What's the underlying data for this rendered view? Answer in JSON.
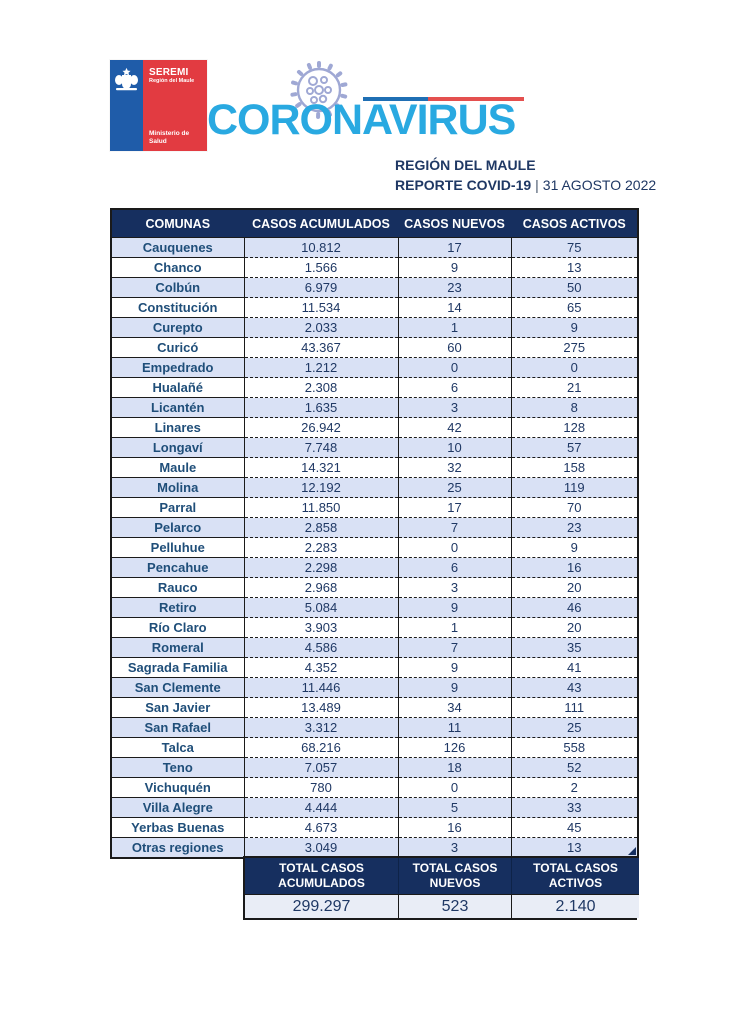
{
  "logo": {
    "agency": "SEREMI",
    "region": "Región del Maule",
    "ministry": "Ministerio de\nSalud"
  },
  "header": {
    "title": "CORONAVIRUS",
    "region": "REGIÓN DEL MAULE",
    "report_label": "REPORTE COVID-19",
    "separator": "|",
    "report_date": "31 AGOSTO 2022"
  },
  "colors": {
    "title_blue": "#29A9E1",
    "navy_text": "#1F3864",
    "comuna_text": "#1F4E79",
    "header_bg": "#162F5F",
    "row_alt": "#D9E1F5",
    "totals_value_bg": "#E9EDF6",
    "logo_blue": "#1F5CA9",
    "logo_red": "#E23B41",
    "accent_line_blue": "#1F6FB4",
    "accent_line_red": "#E4504F",
    "virus_icon": "#9FA8D4"
  },
  "table": {
    "columns": [
      "COMUNAS",
      "CASOS ACUMULADOS",
      "CASOS NUEVOS",
      "CASOS ACTIVOS"
    ],
    "rows": [
      {
        "comuna": "Cauquenes",
        "acumulados": "10.812",
        "nuevos": "17",
        "activos": "75"
      },
      {
        "comuna": "Chanco",
        "acumulados": "1.566",
        "nuevos": "9",
        "activos": "13"
      },
      {
        "comuna": "Colbún",
        "acumulados": "6.979",
        "nuevos": "23",
        "activos": "50"
      },
      {
        "comuna": "Constitución",
        "acumulados": "11.534",
        "nuevos": "14",
        "activos": "65"
      },
      {
        "comuna": "Curepto",
        "acumulados": "2.033",
        "nuevos": "1",
        "activos": "9"
      },
      {
        "comuna": "Curicó",
        "acumulados": "43.367",
        "nuevos": "60",
        "activos": "275"
      },
      {
        "comuna": "Empedrado",
        "acumulados": "1.212",
        "nuevos": "0",
        "activos": "0"
      },
      {
        "comuna": "Hualañé",
        "acumulados": "2.308",
        "nuevos": "6",
        "activos": "21"
      },
      {
        "comuna": "Licantén",
        "acumulados": "1.635",
        "nuevos": "3",
        "activos": "8"
      },
      {
        "comuna": "Linares",
        "acumulados": "26.942",
        "nuevos": "42",
        "activos": "128"
      },
      {
        "comuna": "Longaví",
        "acumulados": "7.748",
        "nuevos": "10",
        "activos": "57"
      },
      {
        "comuna": "Maule",
        "acumulados": "14.321",
        "nuevos": "32",
        "activos": "158"
      },
      {
        "comuna": "Molina",
        "acumulados": "12.192",
        "nuevos": "25",
        "activos": "119"
      },
      {
        "comuna": "Parral",
        "acumulados": "11.850",
        "nuevos": "17",
        "activos": "70"
      },
      {
        "comuna": "Pelarco",
        "acumulados": "2.858",
        "nuevos": "7",
        "activos": "23"
      },
      {
        "comuna": "Pelluhue",
        "acumulados": "2.283",
        "nuevos": "0",
        "activos": "9"
      },
      {
        "comuna": "Pencahue",
        "acumulados": "2.298",
        "nuevos": "6",
        "activos": "16"
      },
      {
        "comuna": "Rauco",
        "acumulados": "2.968",
        "nuevos": "3",
        "activos": "20"
      },
      {
        "comuna": "Retiro",
        "acumulados": "5.084",
        "nuevos": "9",
        "activos": "46"
      },
      {
        "comuna": "Río Claro",
        "acumulados": "3.903",
        "nuevos": "1",
        "activos": "20"
      },
      {
        "comuna": "Romeral",
        "acumulados": "4.586",
        "nuevos": "7",
        "activos": "35"
      },
      {
        "comuna": "Sagrada Familia",
        "acumulados": "4.352",
        "nuevos": "9",
        "activos": "41"
      },
      {
        "comuna": "San Clemente",
        "acumulados": "11.446",
        "nuevos": "9",
        "activos": "43"
      },
      {
        "comuna": "San Javier",
        "acumulados": "13.489",
        "nuevos": "34",
        "activos": "111"
      },
      {
        "comuna": "San Rafael",
        "acumulados": "3.312",
        "nuevos": "11",
        "activos": "25"
      },
      {
        "comuna": "Talca",
        "acumulados": "68.216",
        "nuevos": "126",
        "activos": "558"
      },
      {
        "comuna": "Teno",
        "acumulados": "7.057",
        "nuevos": "18",
        "activos": "52"
      },
      {
        "comuna": "Vichuquén",
        "acumulados": "780",
        "nuevos": "0",
        "activos": "2"
      },
      {
        "comuna": "Villa Alegre",
        "acumulados": "4.444",
        "nuevos": "5",
        "activos": "33"
      },
      {
        "comuna": "Yerbas Buenas",
        "acumulados": "4.673",
        "nuevos": "16",
        "activos": "45"
      },
      {
        "comuna": "Otras regiones",
        "acumulados": "3.049",
        "nuevos": "3",
        "activos": "13"
      }
    ]
  },
  "totals": {
    "items": [
      {
        "label_line1": "TOTAL CASOS",
        "label_line2": "ACUMULADOS",
        "value": "299.297"
      },
      {
        "label_line1": "TOTAL CASOS",
        "label_line2": "NUEVOS",
        "value": "523"
      },
      {
        "label_line1": "TOTAL CASOS",
        "label_line2": "ACTIVOS",
        "value": "2.140"
      }
    ]
  }
}
